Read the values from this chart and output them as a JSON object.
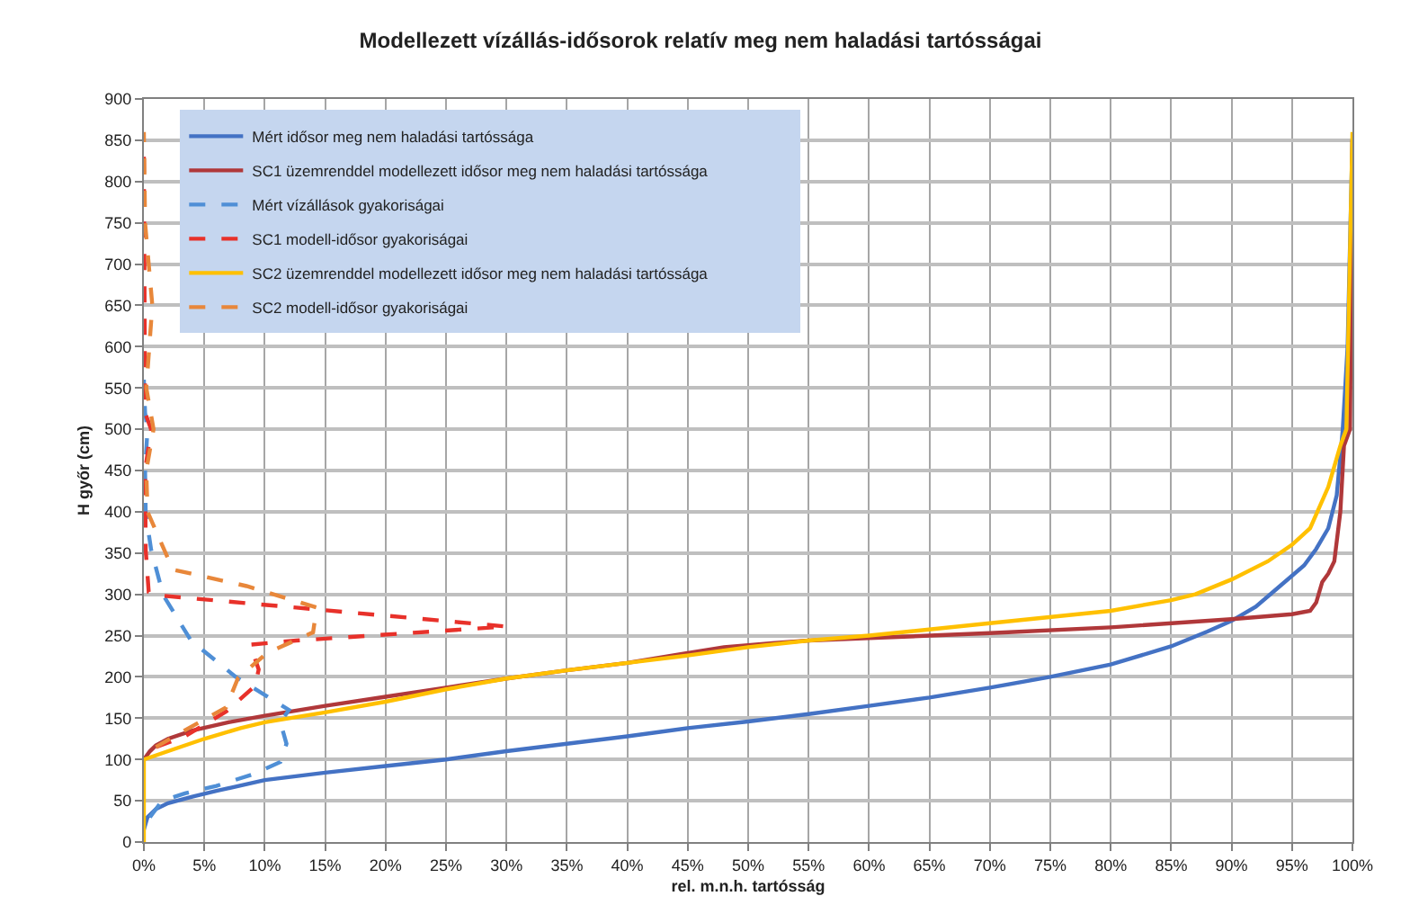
{
  "chart_data": {
    "type": "line",
    "title": "Modellezett vízállás-idősorok relatív meg nem haladási tartósságai",
    "xlabel": "rel. m.n.h. tartósság",
    "ylabel": "H győr (cm)",
    "xlim": [
      0,
      100
    ],
    "ylim": [
      0,
      900
    ],
    "xticks": [
      {
        "value": 0,
        "label": "0%"
      },
      {
        "value": 5,
        "label": "5%"
      },
      {
        "value": 10,
        "label": "10%"
      },
      {
        "value": 15,
        "label": "15%"
      },
      {
        "value": 20,
        "label": "20%"
      },
      {
        "value": 25,
        "label": "25%"
      },
      {
        "value": 30,
        "label": "30%"
      },
      {
        "value": 35,
        "label": "35%"
      },
      {
        "value": 40,
        "label": "40%"
      },
      {
        "value": 45,
        "label": "45%"
      },
      {
        "value": 50,
        "label": "50%"
      },
      {
        "value": 55,
        "label": "55%"
      },
      {
        "value": 60,
        "label": "60%"
      },
      {
        "value": 65,
        "label": "65%"
      },
      {
        "value": 70,
        "label": "70%"
      },
      {
        "value": 75,
        "label": "75%"
      },
      {
        "value": 80,
        "label": "80%"
      },
      {
        "value": 85,
        "label": "85%"
      },
      {
        "value": 90,
        "label": "90%"
      },
      {
        "value": 95,
        "label": "95%"
      },
      {
        "value": 100,
        "label": "100%"
      }
    ],
    "yticks": [
      0,
      50,
      100,
      150,
      200,
      250,
      300,
      350,
      400,
      450,
      500,
      550,
      600,
      650,
      700,
      750,
      800,
      850,
      900
    ],
    "grid": true,
    "legend": "top",
    "marker": "none",
    "series": [
      {
        "name": "Mért idősor meg nem haladási tartóssága",
        "color": "#4472c4",
        "line_style": "solid",
        "x": [
          0,
          0.3,
          1,
          2,
          4,
          6,
          10,
          15,
          20,
          25,
          30,
          35,
          40,
          45,
          50,
          55,
          60,
          65,
          70,
          75,
          80,
          85,
          88,
          90,
          92,
          94,
          96,
          97,
          98,
          98.7,
          99.2,
          99.6,
          100
        ],
        "values": [
          15,
          30,
          40,
          47,
          55,
          62,
          75,
          84,
          92,
          100,
          110,
          119,
          128,
          138,
          146,
          155,
          165,
          175,
          187,
          200,
          215,
          237,
          255,
          268,
          285,
          310,
          335,
          355,
          380,
          420,
          500,
          600,
          850
        ]
      },
      {
        "name": "SC1 üzemrenddel modellezett idősor meg nem haladási tartóssága",
        "color": "#b0383a",
        "line_style": "solid",
        "x": [
          0,
          0.5,
          1,
          2,
          4,
          7,
          10,
          15,
          20,
          25,
          30,
          35,
          40,
          45,
          48,
          52,
          55,
          60,
          70,
          80,
          90,
          95,
          96.5,
          97,
          97.5,
          98,
          98.5,
          99,
          99.3,
          99.8,
          100
        ],
        "values": [
          100,
          110,
          117,
          125,
          135,
          145,
          153,
          165,
          176,
          187,
          198,
          208,
          217,
          229,
          236,
          241,
          244,
          247,
          253,
          260,
          270,
          276,
          280,
          290,
          315,
          325,
          340,
          400,
          480,
          500,
          850
        ]
      },
      {
        "name": "Mért vízállások gyakoriságai",
        "color": "#4f8fd6",
        "line_style": "dashed",
        "x": [
          0.5,
          1.5,
          3.4,
          6,
          9,
          11.3,
          11.8,
          11.3,
          12,
          7.6,
          3.9,
          1.6,
          0.6,
          0.15,
          0.1,
          0.3,
          0.1,
          0
        ],
        "values": [
          30,
          50,
          59,
          68,
          82,
          97,
          119,
          145,
          160,
          200,
          244,
          299,
          354,
          398,
          450,
          500,
          520,
          560
        ]
      },
      {
        "name": "SC1 modell-idősor gyakoriságai",
        "color": "#e8312a",
        "line_style": "dashed",
        "x": [
          1,
          3.4,
          6.8,
          9.2,
          9.5,
          8.8,
          12.6,
          30,
          12.6,
          1,
          0.4,
          0.15,
          0.1,
          0.6,
          0.1,
          0
        ],
        "values": [
          115,
          128,
          158,
          189,
          209,
          239,
          244,
          261,
          284,
          299,
          303,
          354,
          450,
          500,
          520,
          840
        ]
      },
      {
        "name": "SC2 üzemrenddel modellezett idősor meg nem haladási tartóssága",
        "color": "#ffc000",
        "line_style": "solid",
        "x": [
          0,
          0,
          2,
          5,
          8,
          10,
          15,
          20,
          25,
          30,
          35,
          40,
          45,
          50,
          55,
          60,
          70,
          80,
          85,
          87,
          90,
          93,
          95,
          96.5,
          98,
          99,
          99.5,
          100
        ],
        "values": [
          0,
          100,
          110,
          125,
          138,
          145,
          157,
          170,
          185,
          198,
          208,
          217,
          226,
          236,
          244,
          250,
          265,
          280,
          293,
          300,
          318,
          340,
          360,
          380,
          430,
          480,
          500,
          860
        ]
      },
      {
        "name": "SC2 modell-idősor gyakoriságai",
        "color": "#e8873a",
        "line_style": "dashed",
        "x": [
          1,
          3.1,
          6.8,
          7.8,
          10.2,
          14,
          14.3,
          8.5,
          2.4,
          0.3,
          0.2,
          0.8,
          0.2,
          0.7,
          0.1,
          0
        ],
        "values": [
          115,
          133,
          163,
          199,
          229,
          254,
          284,
          310,
          330,
          400,
          450,
          500,
          550,
          650,
          750,
          860
        ]
      }
    ]
  }
}
